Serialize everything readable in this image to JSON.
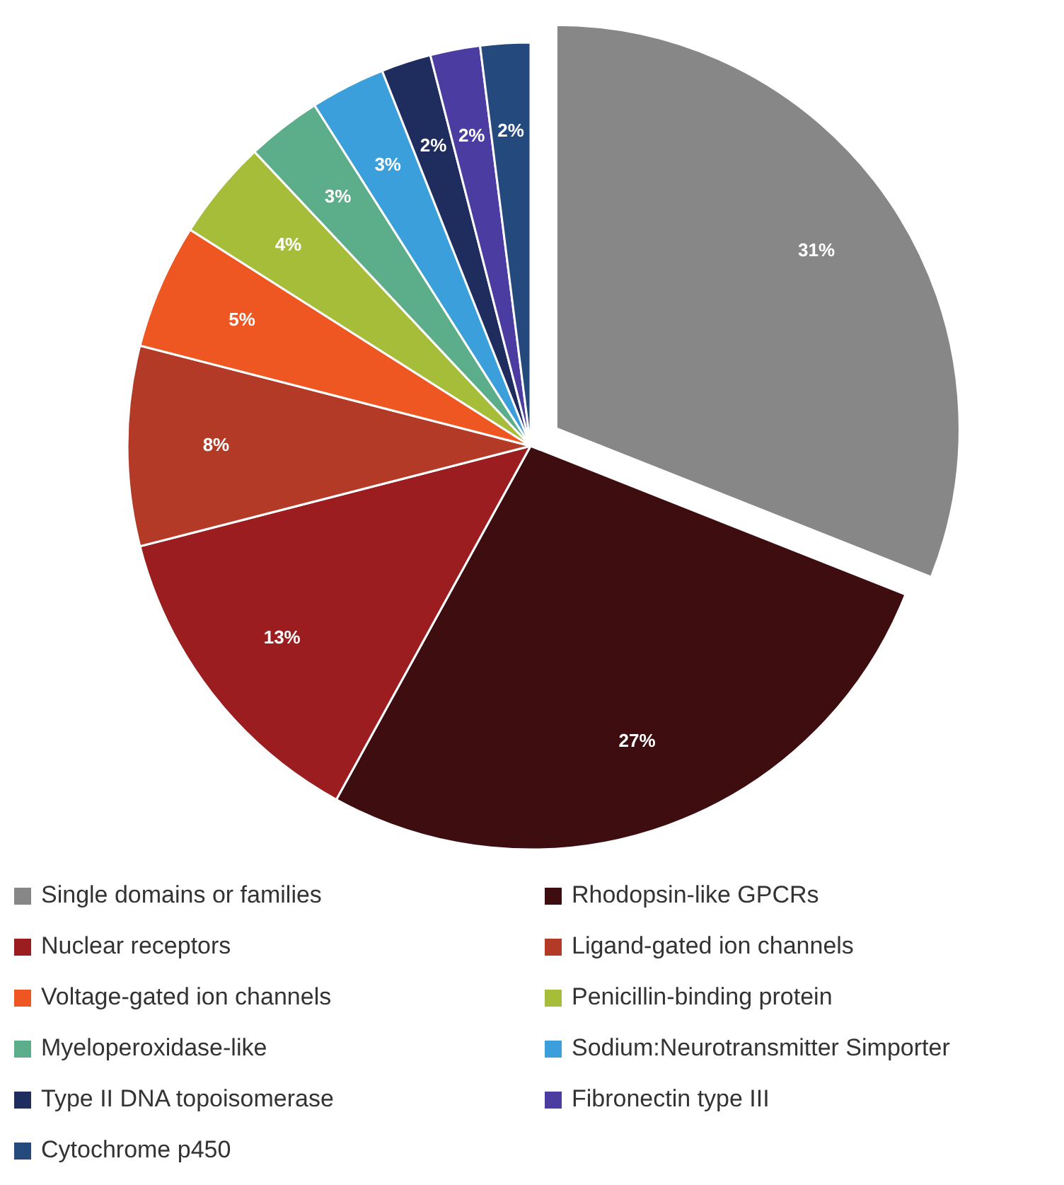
{
  "chart_data": {
    "type": "pie",
    "categories": [
      "Single domains or families",
      "Rhodopsin-like GPCRs",
      "Nuclear receptors",
      "Ligand-gated ion channels",
      "Voltage-gated ion channels",
      "Penicillin-binding protein",
      "Myeloperoxidase-like",
      "Sodium:Neurotransmitter Simporter",
      "Type II DNA topoisomerase",
      "Fibronectin type III",
      "Cytochrome p450"
    ],
    "values": [
      31,
      27,
      13,
      8,
      5,
      4,
      3,
      3,
      2,
      2,
      2
    ],
    "value_labels": [
      "31%",
      "27%",
      "13%",
      "8%",
      "5%",
      "4%",
      "3%",
      "3%",
      "2%",
      "2%",
      "2%"
    ],
    "colors": [
      "#878787",
      "#3d0d0f",
      "#9c1d1f",
      "#b23a26",
      "#ef5722",
      "#a6bd3a",
      "#5cae8a",
      "#3a9fdb",
      "#1e2c5e",
      "#4a3ca0",
      "#23497d"
    ],
    "legend": "bottom"
  }
}
